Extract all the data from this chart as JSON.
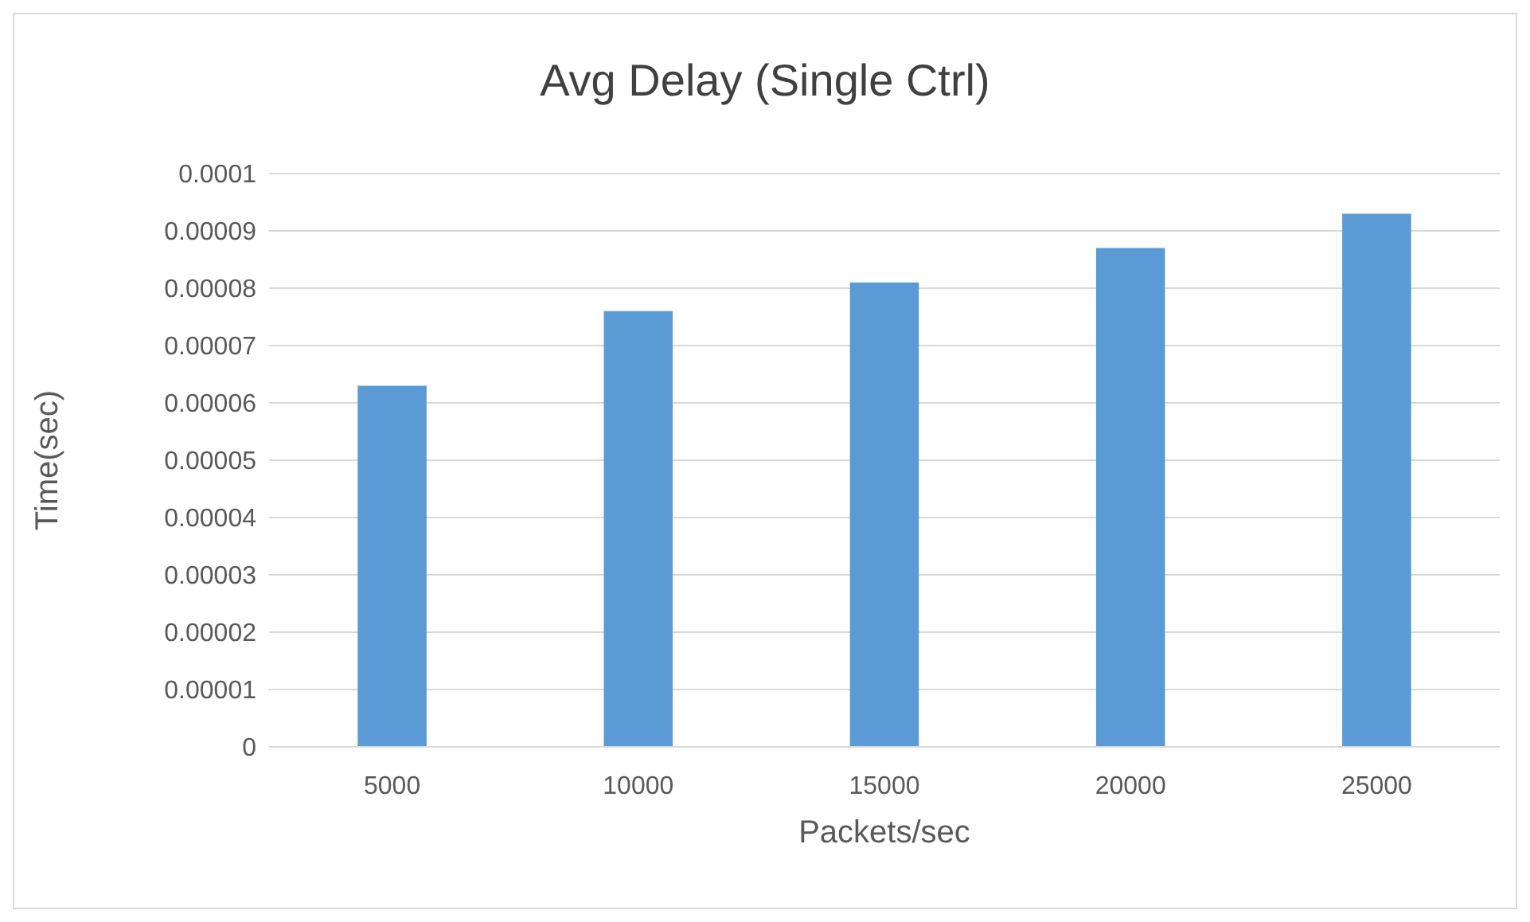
{
  "chart_data": {
    "type": "bar",
    "title": "Avg Delay (Single Ctrl)",
    "xlabel": "Packets/sec",
    "ylabel": "Time(sec)",
    "categories": [
      "5000",
      "10000",
      "15000",
      "20000",
      "25000"
    ],
    "values": [
      6.3e-05,
      7.6e-05,
      8.1e-05,
      8.7e-05,
      9.3e-05
    ],
    "color": "#5b9bd5",
    "ylim": [
      0,
      0.0001
    ],
    "yticks": [
      0,
      {
        "value": 1e-05,
        "label": "0.00001"
      },
      {
        "value": 2e-05,
        "label": "0.00002"
      },
      {
        "value": 3e-05,
        "label": "0.00003"
      },
      {
        "value": 4e-05,
        "label": "0.00004"
      },
      {
        "value": 5e-05,
        "label": "0.00005"
      },
      {
        "value": 6e-05,
        "label": "0.00006"
      },
      {
        "value": 7e-05,
        "label": "0.00007"
      },
      {
        "value": 8e-05,
        "label": "0.00008"
      },
      {
        "value": 9e-05,
        "label": "0.00009"
      },
      0.0001
    ],
    "grid": "y"
  }
}
